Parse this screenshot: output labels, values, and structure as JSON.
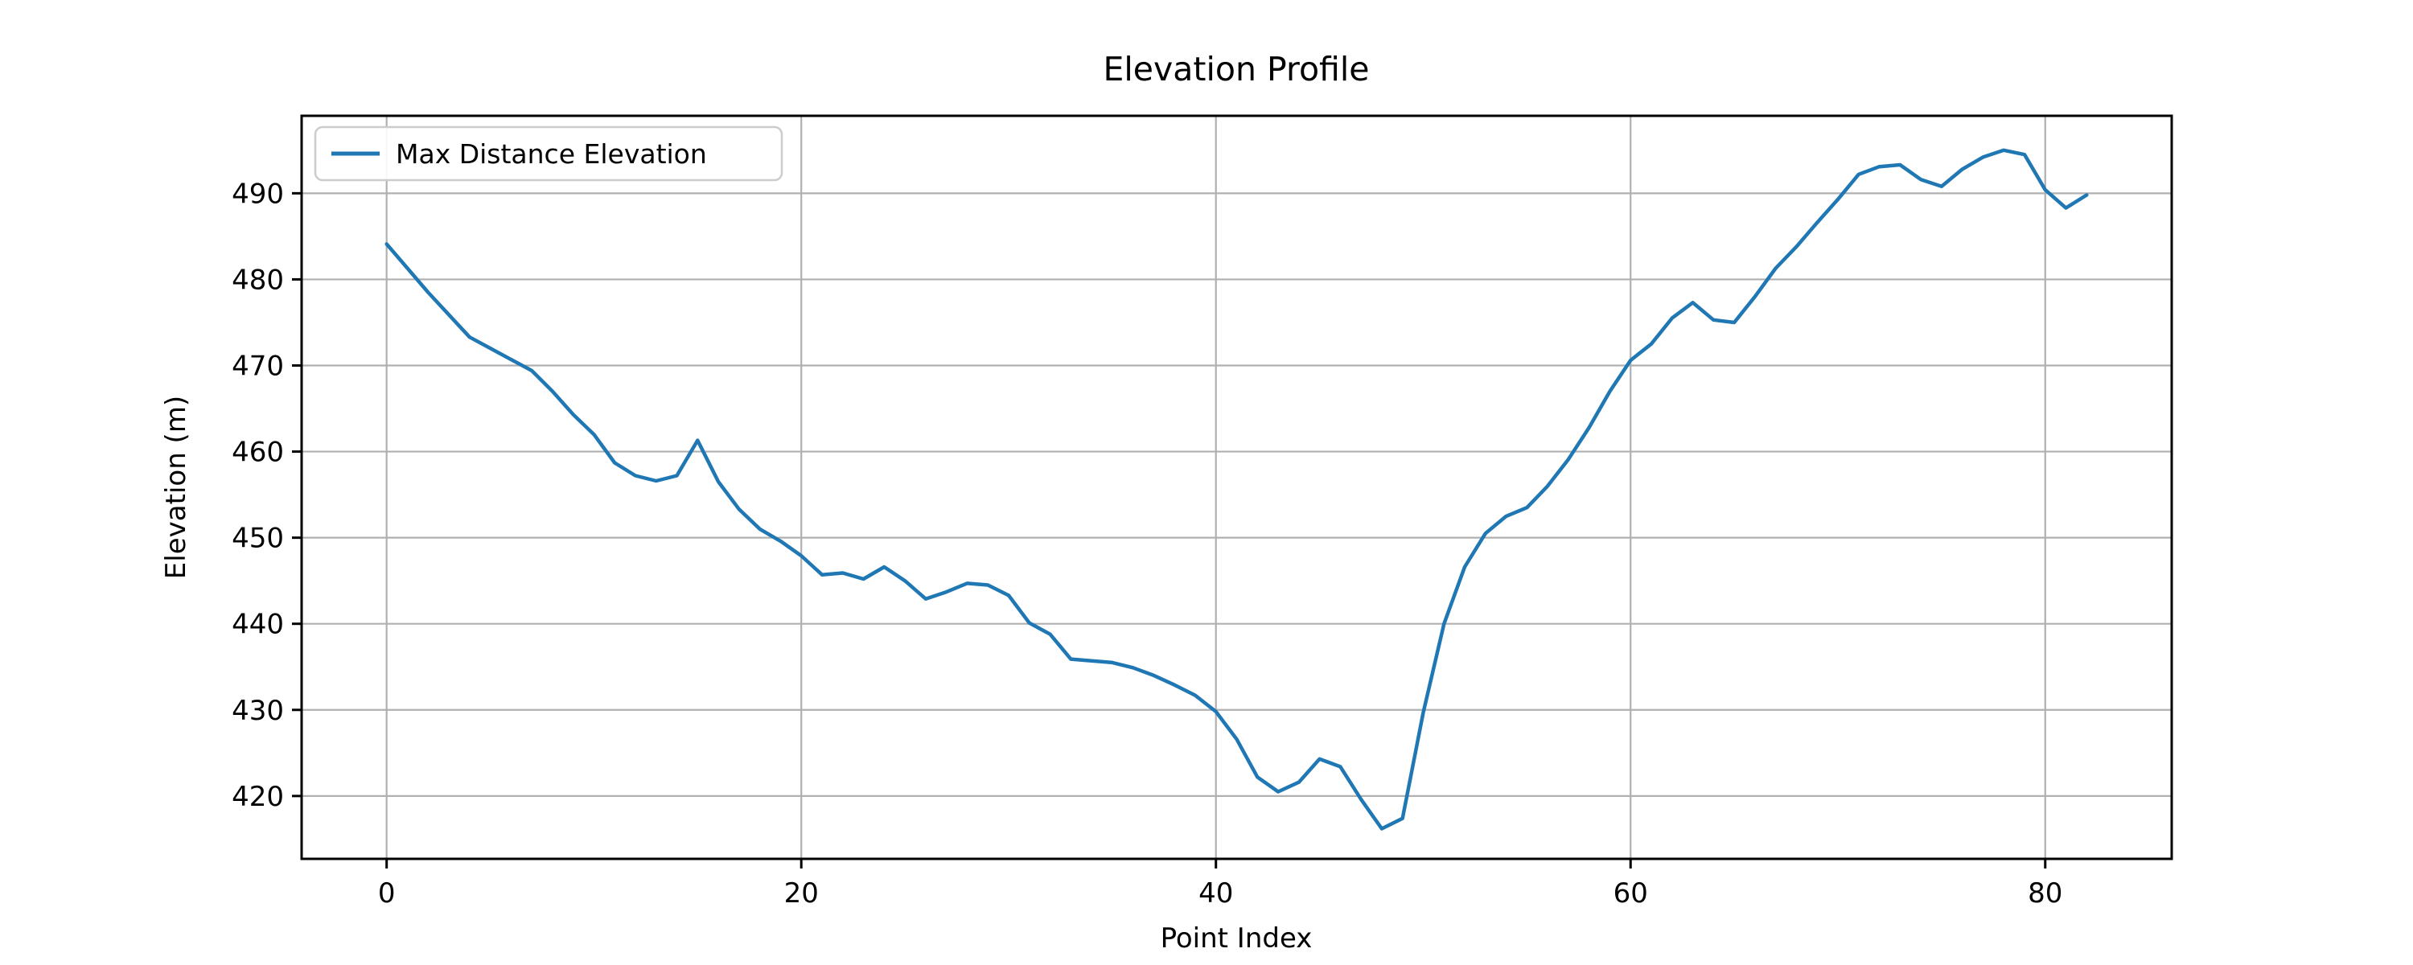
{
  "figure": {
    "background_color": "#ffffff",
    "grid_color": "#b0b0b0",
    "spine_color": "#000000",
    "text_color": "#000000"
  },
  "chart_data": {
    "type": "line",
    "title": "Elevation Profile",
    "xlabel": "Point Index",
    "ylabel": "Elevation (m)",
    "grid": true,
    "legend": {
      "position": "upper-left",
      "entries": [
        "Max Distance Elevation"
      ]
    },
    "line_color": "#1f77b4",
    "x_is_point_index": true,
    "n_points": 83,
    "xlim": [
      -4.1,
      86.1
    ],
    "ylim": [
      412.7,
      499.0
    ],
    "xticks": [
      0,
      20,
      40,
      60,
      80
    ],
    "yticks": [
      420,
      430,
      440,
      450,
      460,
      470,
      480,
      490
    ],
    "series": [
      {
        "name": "Max Distance Elevation",
        "values": [
          484.1,
          481.3,
          478.5,
          475.9,
          473.3,
          472.0,
          470.7,
          469.4,
          467.0,
          464.3,
          462.0,
          458.7,
          457.2,
          456.6,
          457.2,
          461.3,
          456.5,
          453.3,
          451.0,
          449.6,
          447.9,
          445.7,
          445.9,
          445.2,
          446.6,
          445.0,
          442.9,
          443.7,
          444.7,
          444.5,
          443.3,
          440.1,
          438.8,
          435.9,
          435.7,
          435.5,
          434.9,
          434.0,
          432.9,
          431.7,
          429.8,
          426.6,
          422.2,
          420.5,
          421.6,
          424.3,
          423.4,
          419.6,
          416.2,
          417.4,
          429.7,
          440.0,
          446.6,
          450.5,
          452.5,
          453.5,
          456.0,
          459.1,
          462.8,
          467.0,
          470.6,
          472.5,
          475.5,
          477.3,
          475.3,
          475.0,
          478.0,
          481.3,
          483.8,
          486.6,
          489.3,
          492.2,
          493.1,
          493.3,
          491.6,
          490.8,
          492.8,
          494.2,
          495.0,
          494.5,
          490.4,
          488.3,
          489.8
        ]
      }
    ]
  }
}
